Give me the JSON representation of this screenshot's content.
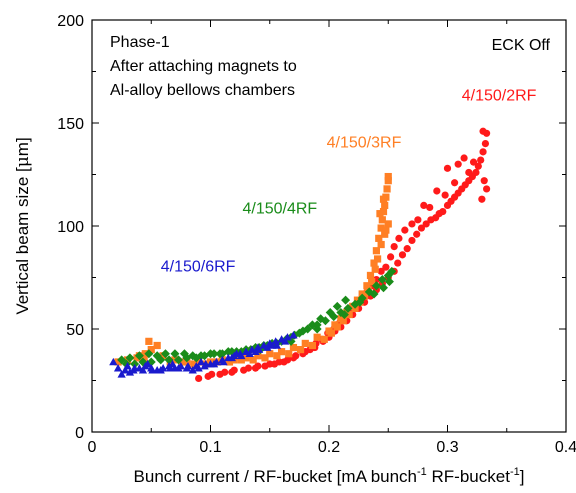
{
  "chart_data": {
    "type": "scatter",
    "title": "",
    "xlabel": {
      "main": "Bunch current / RF-bucket [mA bunch",
      "sup1": "-1",
      "mid": " RF-bucket",
      "sup2": "-1",
      "end": "]"
    },
    "ylabel": {
      "pre": "Vertical beam size [",
      "mu": "μ",
      "post": "m]"
    },
    "xlim": [
      0,
      0.4
    ],
    "ylim": [
      0,
      200
    ],
    "xticks": [
      0,
      0.1,
      0.2,
      0.3,
      0.4
    ],
    "xtick_labels": [
      "0",
      "0.1",
      "0.2",
      "0.3",
      "0.4"
    ],
    "yticks": [
      0,
      50,
      100,
      150,
      200
    ],
    "ytick_labels": [
      "0",
      "50",
      "100",
      "150",
      "200"
    ],
    "grid": false,
    "annotations": [
      "Phase-1",
      "After attaching magnets to",
      "Al-alloy bellows chambers"
    ],
    "corner_note": "ECK Off",
    "series": [
      {
        "name": "4/150/2RF",
        "color": "#ff1a1a",
        "marker": "circle",
        "label_at": [
          0.312,
          161
        ],
        "points": [
          [
            0.09,
            26
          ],
          [
            0.101,
            28
          ],
          [
            0.112,
            29
          ],
          [
            0.12,
            30
          ],
          [
            0.132,
            31
          ],
          [
            0.14,
            32
          ],
          [
            0.15,
            33
          ],
          [
            0.158,
            34
          ],
          [
            0.165,
            35
          ],
          [
            0.172,
            37
          ],
          [
            0.18,
            39
          ],
          [
            0.188,
            41
          ],
          [
            0.195,
            44
          ],
          [
            0.2,
            46
          ],
          [
            0.205,
            49
          ],
          [
            0.21,
            51
          ],
          [
            0.215,
            54
          ],
          [
            0.22,
            57
          ],
          [
            0.225,
            60
          ],
          [
            0.23,
            63
          ],
          [
            0.235,
            66
          ],
          [
            0.24,
            69
          ],
          [
            0.245,
            72
          ],
          [
            0.25,
            75
          ],
          [
            0.255,
            78
          ],
          [
            0.258,
            82
          ],
          [
            0.262,
            86
          ],
          [
            0.266,
            89
          ],
          [
            0.27,
            93
          ],
          [
            0.274,
            96
          ],
          [
            0.278,
            99
          ],
          [
            0.282,
            101
          ],
          [
            0.286,
            103
          ],
          [
            0.29,
            104
          ],
          [
            0.293,
            106
          ],
          [
            0.296,
            107
          ],
          [
            0.3,
            110
          ],
          [
            0.303,
            112
          ],
          [
            0.306,
            114
          ],
          [
            0.309,
            116
          ],
          [
            0.312,
            118
          ],
          [
            0.315,
            120
          ],
          [
            0.318,
            122
          ],
          [
            0.321,
            124
          ],
          [
            0.324,
            126
          ],
          [
            0.326,
            129
          ],
          [
            0.328,
            132
          ],
          [
            0.33,
            136
          ],
          [
            0.332,
            140
          ],
          [
            0.333,
            145
          ],
          [
            0.33,
            146
          ],
          [
            0.331,
            122
          ],
          [
            0.333,
            118
          ],
          [
            0.329,
            113
          ],
          [
            0.322,
            131
          ],
          [
            0.318,
            126
          ],
          [
            0.314,
            133
          ],
          [
            0.309,
            130
          ],
          [
            0.306,
            121
          ],
          [
            0.3,
            128
          ],
          [
            0.298,
            115
          ],
          [
            0.291,
            117
          ],
          [
            0.285,
            109
          ],
          [
            0.28,
            110
          ],
          [
            0.275,
            103
          ],
          [
            0.27,
            101
          ],
          [
            0.264,
            98
          ],
          [
            0.259,
            94
          ],
          [
            0.255,
            90
          ],
          [
            0.252,
            85
          ],
          [
            0.248,
            80
          ],
          [
            0.244,
            78
          ],
          [
            0.24,
            74
          ],
          [
            0.236,
            71
          ],
          [
            0.232,
            68
          ],
          [
            0.228,
            65
          ],
          [
            0.224,
            62
          ],
          [
            0.219,
            59
          ],
          [
            0.214,
            56
          ],
          [
            0.209,
            53
          ],
          [
            0.204,
            50
          ],
          [
            0.199,
            48
          ],
          [
            0.194,
            45
          ],
          [
            0.189,
            43
          ],
          [
            0.184,
            40
          ],
          [
            0.178,
            38
          ],
          [
            0.17,
            36
          ],
          [
            0.162,
            34
          ],
          [
            0.154,
            33
          ],
          [
            0.146,
            32
          ],
          [
            0.138,
            31
          ],
          [
            0.128,
            30
          ],
          [
            0.118,
            29
          ],
          [
            0.108,
            28
          ],
          [
            0.098,
            27
          ]
        ]
      },
      {
        "name": "4/150/3RF",
        "color": "#ff7f24",
        "marker": "square",
        "label_at": [
          0.198,
          138
        ],
        "points": [
          [
            0.022,
            34
          ],
          [
            0.03,
            35
          ],
          [
            0.038,
            36
          ],
          [
            0.045,
            38
          ],
          [
            0.048,
            44
          ],
          [
            0.055,
            42
          ],
          [
            0.06,
            37
          ],
          [
            0.07,
            35
          ],
          [
            0.08,
            34
          ],
          [
            0.09,
            34
          ],
          [
            0.1,
            34
          ],
          [
            0.11,
            35
          ],
          [
            0.12,
            35
          ],
          [
            0.13,
            36
          ],
          [
            0.14,
            37
          ],
          [
            0.15,
            38
          ],
          [
            0.16,
            39
          ],
          [
            0.17,
            41
          ],
          [
            0.18,
            43
          ],
          [
            0.19,
            46
          ],
          [
            0.2,
            49
          ],
          [
            0.205,
            52
          ],
          [
            0.21,
            55
          ],
          [
            0.215,
            58
          ],
          [
            0.22,
            61
          ],
          [
            0.224,
            64
          ],
          [
            0.228,
            67
          ],
          [
            0.232,
            71
          ],
          [
            0.235,
            76
          ],
          [
            0.238,
            82
          ],
          [
            0.24,
            88
          ],
          [
            0.242,
            94
          ],
          [
            0.244,
            99
          ],
          [
            0.245,
            103
          ],
          [
            0.246,
            107
          ],
          [
            0.247,
            110
          ],
          [
            0.248,
            114
          ],
          [
            0.249,
            118
          ],
          [
            0.25,
            122
          ],
          [
            0.25,
            124
          ],
          [
            0.247,
            96
          ],
          [
            0.244,
            91
          ],
          [
            0.241,
            84
          ],
          [
            0.239,
            79
          ],
          [
            0.236,
            73
          ],
          [
            0.233,
            69
          ],
          [
            0.23,
            66
          ],
          [
            0.226,
            63
          ],
          [
            0.222,
            60
          ],
          [
            0.217,
            57
          ],
          [
            0.212,
            54
          ],
          [
            0.207,
            51
          ],
          [
            0.202,
            48
          ],
          [
            0.196,
            45
          ],
          [
            0.186,
            42
          ],
          [
            0.176,
            40
          ],
          [
            0.166,
            38
          ],
          [
            0.156,
            37
          ],
          [
            0.146,
            36
          ],
          [
            0.136,
            35
          ],
          [
            0.126,
            35
          ],
          [
            0.116,
            34
          ],
          [
            0.106,
            34
          ],
          [
            0.096,
            33
          ],
          [
            0.086,
            33
          ],
          [
            0.076,
            34
          ],
          [
            0.066,
            34
          ],
          [
            0.044,
            36
          ],
          [
            0.05,
            40
          ],
          [
            0.04,
            37
          ],
          [
            0.25,
            101
          ],
          [
            0.248,
            98
          ],
          [
            0.243,
            106
          ],
          [
            0.246,
            113
          ]
        ]
      },
      {
        "name": "4/150/4RF",
        "color": "#1a8c1a",
        "marker": "diamond",
        "label_at": [
          0.127,
          106
        ],
        "points": [
          [
            0.025,
            35
          ],
          [
            0.032,
            36
          ],
          [
            0.04,
            37
          ],
          [
            0.048,
            38
          ],
          [
            0.055,
            37
          ],
          [
            0.062,
            38
          ],
          [
            0.07,
            38
          ],
          [
            0.078,
            38
          ],
          [
            0.085,
            37
          ],
          [
            0.092,
            37
          ],
          [
            0.1,
            38
          ],
          [
            0.108,
            38
          ],
          [
            0.115,
            39
          ],
          [
            0.122,
            39
          ],
          [
            0.13,
            40
          ],
          [
            0.138,
            41
          ],
          [
            0.145,
            42
          ],
          [
            0.152,
            43
          ],
          [
            0.16,
            44
          ],
          [
            0.168,
            46
          ],
          [
            0.175,
            48
          ],
          [
            0.182,
            50
          ],
          [
            0.19,
            52
          ],
          [
            0.197,
            54
          ],
          [
            0.204,
            56
          ],
          [
            0.21,
            58
          ],
          [
            0.216,
            60
          ],
          [
            0.222,
            62
          ],
          [
            0.228,
            65
          ],
          [
            0.234,
            68
          ],
          [
            0.24,
            71
          ],
          [
            0.245,
            74
          ],
          [
            0.25,
            76
          ],
          [
            0.253,
            78
          ],
          [
            0.214,
            64
          ],
          [
            0.207,
            61
          ],
          [
            0.201,
            58
          ],
          [
            0.193,
            55
          ],
          [
            0.186,
            52
          ],
          [
            0.178,
            49
          ],
          [
            0.171,
            47
          ],
          [
            0.164,
            45
          ],
          [
            0.156,
            43
          ],
          [
            0.148,
            42
          ],
          [
            0.141,
            41
          ],
          [
            0.134,
            40
          ],
          [
            0.126,
            39
          ],
          [
            0.118,
            39
          ],
          [
            0.11,
            38
          ],
          [
            0.103,
            38
          ],
          [
            0.095,
            37
          ],
          [
            0.088,
            36
          ],
          [
            0.08,
            36
          ],
          [
            0.073,
            35
          ],
          [
            0.065,
            35
          ],
          [
            0.058,
            35
          ],
          [
            0.05,
            34
          ],
          [
            0.043,
            34
          ],
          [
            0.036,
            33
          ],
          [
            0.029,
            33
          ],
          [
            0.168,
            44
          ],
          [
            0.226,
            63
          ],
          [
            0.238,
            67
          ],
          [
            0.246,
            70
          ],
          [
            0.251,
            73
          ],
          [
            0.213,
            57
          ],
          [
            0.19,
            50
          ],
          [
            0.142,
            40
          ]
        ]
      },
      {
        "name": "4/150/6RF",
        "color": "#1a1acd",
        "marker": "triangle",
        "label_at": [
          0.058,
          78
        ],
        "points": [
          [
            0.018,
            34
          ],
          [
            0.022,
            31
          ],
          [
            0.025,
            28
          ],
          [
            0.03,
            32
          ],
          [
            0.035,
            30
          ],
          [
            0.04,
            31
          ],
          [
            0.045,
            32
          ],
          [
            0.05,
            31
          ],
          [
            0.055,
            30
          ],
          [
            0.06,
            31
          ],
          [
            0.065,
            32
          ],
          [
            0.07,
            31
          ],
          [
            0.075,
            32
          ],
          [
            0.08,
            31
          ],
          [
            0.085,
            30
          ],
          [
            0.09,
            31
          ],
          [
            0.095,
            32
          ],
          [
            0.1,
            33
          ],
          [
            0.105,
            34
          ],
          [
            0.11,
            35
          ],
          [
            0.115,
            36
          ],
          [
            0.12,
            37
          ],
          [
            0.125,
            38
          ],
          [
            0.13,
            39
          ],
          [
            0.135,
            40
          ],
          [
            0.14,
            41
          ],
          [
            0.145,
            42
          ],
          [
            0.15,
            43
          ],
          [
            0.155,
            44
          ],
          [
            0.16,
            45
          ],
          [
            0.165,
            46
          ],
          [
            0.17,
            47
          ],
          [
            0.163,
            44
          ],
          [
            0.156,
            42
          ],
          [
            0.148,
            41
          ],
          [
            0.141,
            40
          ],
          [
            0.133,
            38
          ],
          [
            0.126,
            37
          ],
          [
            0.118,
            36
          ],
          [
            0.111,
            34
          ],
          [
            0.103,
            33
          ],
          [
            0.096,
            33
          ],
          [
            0.088,
            32
          ],
          [
            0.081,
            32
          ],
          [
            0.073,
            31
          ],
          [
            0.066,
            31
          ],
          [
            0.058,
            30
          ],
          [
            0.051,
            30
          ],
          [
            0.043,
            30
          ],
          [
            0.036,
            31
          ],
          [
            0.028,
            30
          ],
          [
            0.032,
            29
          ],
          [
            0.047,
            33
          ],
          [
            0.068,
            33
          ],
          [
            0.092,
            34
          ],
          [
            0.122,
            38
          ],
          [
            0.138,
            39
          ],
          [
            0.152,
            42
          ]
        ]
      }
    ]
  }
}
